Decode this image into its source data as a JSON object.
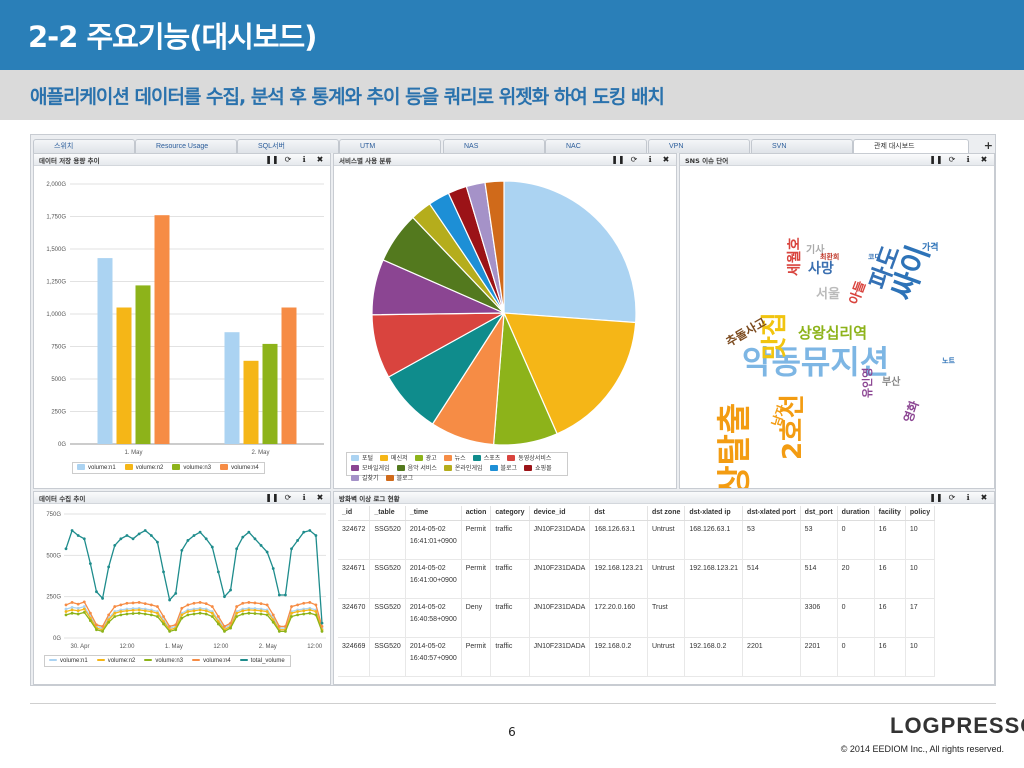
{
  "slide": {
    "title": "2-2 주요기능(대시보드)",
    "subtitle": "애플리케이션 데이터를 수집, 분석 후 통계와 추이 등을 쿼리로 위젯화 하여 도킹 배치",
    "page_number": "6",
    "logo_text": "LOGPRESSO",
    "copyright": "© 2014 EEDIOM Inc., All rights reserved."
  },
  "tabs": [
    {
      "label": "스위치"
    },
    {
      "label": "Resource Usage"
    },
    {
      "label": "SQL서버"
    },
    {
      "label": "UTM"
    },
    {
      "label": "NAS"
    },
    {
      "label": "NAC"
    },
    {
      "label": "VPN"
    },
    {
      "label": "SVN"
    },
    {
      "label": "관제 대시보드",
      "active": true
    }
  ],
  "icons": {
    "pause": "pause-icon",
    "refresh": "refresh-icon",
    "info": "info-icon",
    "close": "close-icon",
    "add": "plus-icon",
    "home": "home-icon"
  },
  "panels": {
    "storage": {
      "title": "데이터 저장 용량 추이"
    },
    "service": {
      "title": "서비스별 사용 분류"
    },
    "sns": {
      "title": "SNS 이슈 단어"
    },
    "collect": {
      "title": "데이터 수집 추이"
    },
    "firewall": {
      "title": "방화벽 이상 로그 현황"
    }
  },
  "chart_data": [
    {
      "type": "bar",
      "categories": [
        "1. May",
        "2. May"
      ],
      "series": [
        {
          "name": "volume:n1",
          "values": [
            1430,
            860
          ],
          "color": "#abd3f2"
        },
        {
          "name": "volume:n2",
          "values": [
            1050,
            640
          ],
          "color": "#f5b617"
        },
        {
          "name": "volume:n3",
          "values": [
            1220,
            770
          ],
          "color": "#8db31a"
        },
        {
          "name": "volume:n4",
          "values": [
            1760,
            1050
          ],
          "color": "#f68c45"
        }
      ],
      "ylim": [
        0,
        2000
      ],
      "yticks": [
        "0G",
        "250G",
        "500G",
        "750G",
        "1,000G",
        "1,250G",
        "1,500G",
        "1,750G",
        "2,000G"
      ],
      "legend": "bottom"
    },
    {
      "type": "pie",
      "slices": [
        {
          "label": "포털",
          "value": 25,
          "color": "#abd3f2"
        },
        {
          "label": "메신저",
          "value": 16.5,
          "color": "#f5b617"
        },
        {
          "label": "광고",
          "value": 7.5,
          "color": "#8db31a"
        },
        {
          "label": "뉴스",
          "value": 7.5,
          "color": "#f68c45"
        },
        {
          "label": "스포츠",
          "value": 7.5,
          "color": "#0f8c8c"
        },
        {
          "label": "동영상서비스",
          "value": 7.5,
          "color": "#d9443e"
        },
        {
          "label": "모바일게임",
          "value": 6.5,
          "color": "#8b4592"
        },
        {
          "label": "음악 서비스",
          "value": 6,
          "color": "#53791e"
        },
        {
          "label": "온라인게임",
          "value": 2.5,
          "color": "#b5ad1c"
        },
        {
          "label": "블로그",
          "value": 2.5,
          "color": "#1d8fd6"
        },
        {
          "label": "쇼핑몰",
          "value": 2.2,
          "color": "#9b1317"
        },
        {
          "label": "길찾기",
          "value": 2.2,
          "color": "#a592c8"
        },
        {
          "label": "블로그",
          "value": 2.2,
          "color": "#d06a1a"
        }
      ],
      "legend": "bottom"
    },
    {
      "type": "line",
      "x_ticks": [
        "30. Apr",
        "12:00",
        "1. May",
        "12:00",
        "2. May",
        "12:00"
      ],
      "ylim": [
        0,
        750
      ],
      "yticks": [
        "0G",
        "250G",
        "500G",
        "750G"
      ],
      "series": [
        {
          "name": "volume:n1",
          "color": "#abd3f2",
          "values": [
            175,
            185,
            180,
            190,
            130,
            70,
            60,
            120,
            160,
            170,
            175,
            178,
            180,
            175,
            170,
            160,
            110,
            60,
            70,
            150,
            170,
            175,
            180,
            175,
            160,
            110,
            60,
            80,
            160,
            175,
            180,
            178,
            175,
            170,
            120,
            60,
            60,
            160,
            170,
            175,
            180,
            170,
            60
          ]
        },
        {
          "name": "volume:n2",
          "color": "#f5b617",
          "values": [
            160,
            170,
            165,
            175,
            120,
            60,
            50,
            110,
            150,
            160,
            165,
            168,
            170,
            165,
            160,
            150,
            100,
            50,
            60,
            140,
            160,
            165,
            170,
            165,
            150,
            100,
            50,
            70,
            150,
            165,
            170,
            168,
            165,
            160,
            110,
            50,
            50,
            150,
            160,
            165,
            170,
            160,
            50
          ]
        },
        {
          "name": "volume:n3",
          "color": "#8db31a",
          "values": [
            140,
            150,
            145,
            155,
            105,
            50,
            40,
            95,
            130,
            140,
            145,
            148,
            150,
            145,
            140,
            130,
            85,
            40,
            50,
            120,
            140,
            145,
            150,
            145,
            130,
            85,
            40,
            60,
            130,
            145,
            150,
            148,
            145,
            140,
            95,
            40,
            40,
            130,
            140,
            145,
            150,
            140,
            40
          ]
        },
        {
          "name": "volume:n4",
          "color": "#f68c45",
          "values": [
            200,
            215,
            205,
            218,
            150,
            80,
            70,
            140,
            190,
            200,
            210,
            212,
            215,
            208,
            200,
            190,
            130,
            70,
            80,
            180,
            200,
            210,
            215,
            208,
            190,
            130,
            70,
            90,
            190,
            210,
            215,
            212,
            208,
            200,
            140,
            70,
            70,
            190,
            200,
            210,
            215,
            200,
            70
          ]
        },
        {
          "name": "total_volume",
          "color": "#1e8c8c",
          "values": [
            540,
            650,
            620,
            600,
            450,
            280,
            240,
            430,
            560,
            600,
            620,
            600,
            630,
            650,
            620,
            580,
            400,
            230,
            270,
            530,
            590,
            620,
            640,
            600,
            550,
            400,
            250,
            290,
            540,
            610,
            640,
            600,
            560,
            520,
            420,
            260,
            260,
            540,
            590,
            640,
            650,
            620,
            90
          ]
        }
      ],
      "legend": "bottom"
    }
  ],
  "wordcloud": [
    {
      "text": "악동뮤지션",
      "color": "#7db6e4",
      "size": 32,
      "left": 62,
      "top": 178
    },
    {
      "text": "비상탈출",
      "color": "#f39c12",
      "size": 34,
      "left": 38,
      "top": 360,
      "rot": -90
    },
    {
      "text": "맛집",
      "color": "#f1c40f",
      "size": 26,
      "left": 82,
      "top": 192,
      "rot": -90
    },
    {
      "text": "2호선",
      "color": "#f39c12",
      "size": 26,
      "left": 100,
      "top": 292,
      "rot": -90
    },
    {
      "text": "싸이",
      "color": "#2d73b8",
      "size": 30,
      "left": 208,
      "top": 126,
      "rot": -70
    },
    {
      "text": "상왕십리역",
      "color": "#8db31a",
      "size": 15,
      "left": 118,
      "top": 158
    },
    {
      "text": "파도",
      "color": "#3471b5",
      "size": 24,
      "left": 186,
      "top": 116,
      "rot": -70
    },
    {
      "text": "세월호",
      "color": "#d9443e",
      "size": 14,
      "left": 108,
      "top": 108,
      "rot": -90
    },
    {
      "text": "추돌사고",
      "color": "#7b4a1e",
      "size": 12,
      "left": 44,
      "top": 170,
      "rot": -30
    },
    {
      "text": "사망",
      "color": "#3a6fb0",
      "size": 14,
      "left": 128,
      "top": 94
    },
    {
      "text": "아들",
      "color": "#d9443e",
      "size": 13,
      "left": 168,
      "top": 134,
      "rot": -70
    },
    {
      "text": "서울",
      "color": "#bbb",
      "size": 13,
      "left": 136,
      "top": 120
    },
    {
      "text": "남자",
      "color": "#f39c12",
      "size": 12,
      "left": 90,
      "top": 256,
      "rot": -70
    },
    {
      "text": "유인영",
      "color": "#8b4592",
      "size": 11,
      "left": 182,
      "top": 230,
      "rot": -90
    },
    {
      "text": "영화",
      "color": "#8b4592",
      "size": 12,
      "left": 222,
      "top": 252,
      "rot": -70
    },
    {
      "text": "부산",
      "color": "#888",
      "size": 10,
      "left": 202,
      "top": 210
    },
    {
      "text": "기사",
      "color": "#aaa",
      "size": 10,
      "left": 126,
      "top": 78
    },
    {
      "text": "가격",
      "color": "#2d73b8",
      "size": 9,
      "left": 242,
      "top": 76
    },
    {
      "text": "최환희",
      "color": "#c0392b",
      "size": 7,
      "left": 140,
      "top": 86
    },
    {
      "text": "코디",
      "color": "#3471b5",
      "size": 7,
      "left": 188,
      "top": 86
    },
    {
      "text": "노트",
      "color": "#2d73b8",
      "size": 7,
      "left": 262,
      "top": 190
    }
  ],
  "log_table": {
    "columns": [
      "_id",
      "_table",
      "_time",
      "action",
      "category",
      "device_id",
      "dst",
      "dst zone",
      "dst-xlated ip",
      "dst-xlated port",
      "dst_port",
      "duration",
      "facility",
      "policy"
    ],
    "rows": [
      [
        "324672",
        "SSG520",
        "2014-05-02\n16:41:01+0900",
        "Permit",
        "traffic",
        "JN10F231DADA",
        "168.126.63.1",
        "Untrust",
        "168.126.63.1",
        "53",
        "53",
        "0",
        "16",
        "10"
      ],
      [
        "324671",
        "SSG520",
        "2014-05-02\n16:41:00+0900",
        "Permit",
        "traffic",
        "JN10F231DADA",
        "192.168.123.21",
        "Untrust",
        "192.168.123.21",
        "514",
        "514",
        "20",
        "16",
        "10"
      ],
      [
        "324670",
        "SSG520",
        "2014-05-02\n16:40:58+0900",
        "Deny",
        "traffic",
        "JN10F231DADA",
        "172.20.0.160",
        "Trust",
        "",
        "",
        "3306",
        "0",
        "16",
        "17"
      ],
      [
        "324669",
        "SSG520",
        "2014-05-02\n16:40:57+0900",
        "Permit",
        "traffic",
        "JN10F231DADA",
        "192.168.0.2",
        "Untrust",
        "192.168.0.2",
        "2201",
        "2201",
        "0",
        "16",
        "10"
      ]
    ]
  }
}
